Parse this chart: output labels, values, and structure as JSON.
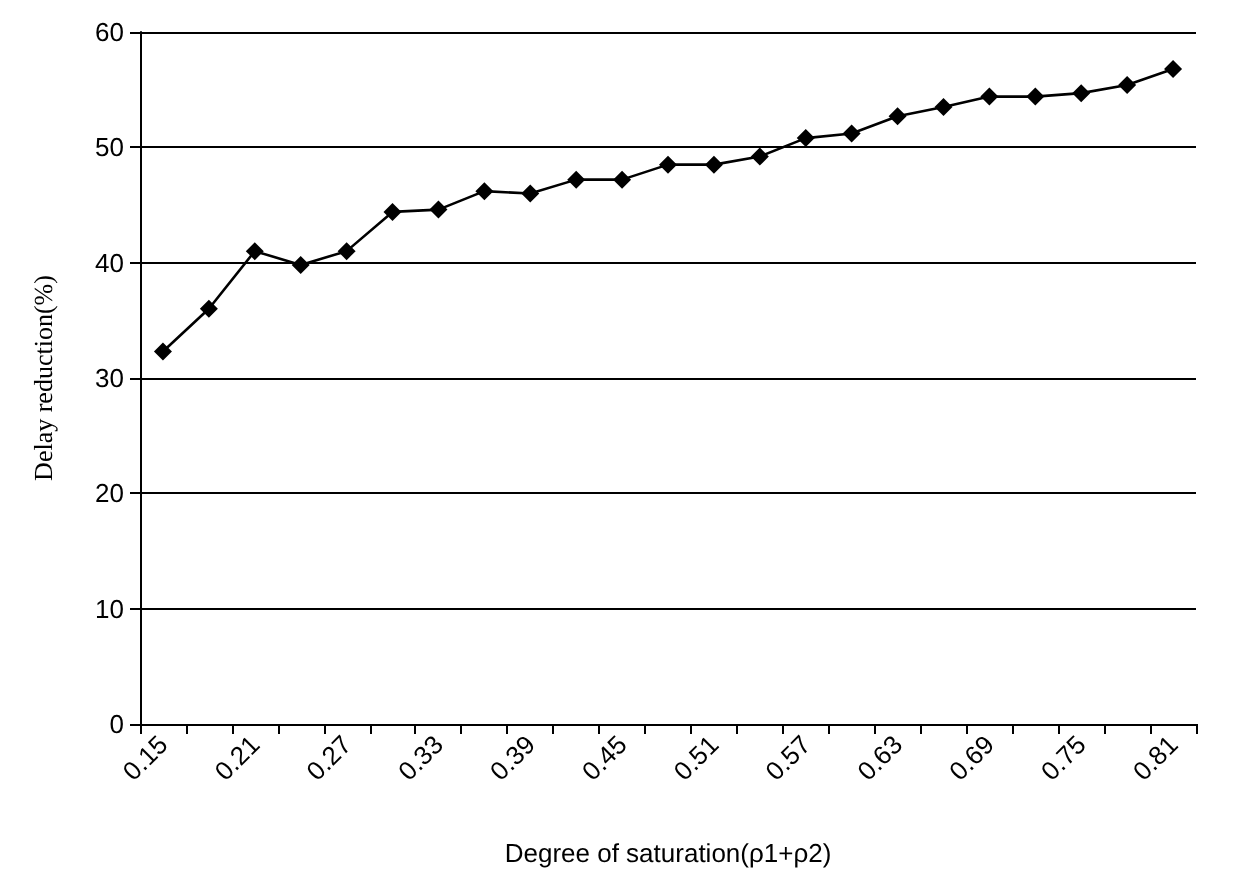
{
  "chart_data": {
    "type": "line",
    "xlabel": "Degree of saturation(ρ1+ρ2)",
    "ylabel": "Delay reduction(%)",
    "categories": [
      "0.15",
      null,
      "0.21",
      null,
      "0.27",
      null,
      "0.33",
      null,
      "0.39",
      null,
      "0.45",
      null,
      "0.51",
      null,
      "0.57",
      null,
      "0.63",
      null,
      "0.69",
      null,
      "0.75",
      null,
      "0.81"
    ],
    "series": [
      {
        "color": "#000000",
        "values": [
          32.3,
          36,
          41,
          39.8,
          41,
          44.4,
          44.6,
          46.2,
          46,
          47.2,
          47.2,
          48.5,
          48.5,
          49.2,
          50.8,
          51.2,
          52.7,
          53.5,
          54.4,
          54.4,
          54.7,
          55.4,
          56.8
        ]
      }
    ],
    "ylim": [
      0,
      60
    ],
    "yticks": [
      0,
      10,
      20,
      30,
      40,
      50,
      60
    ],
    "grid": "y",
    "marker": "diamond",
    "line_style": "solid"
  }
}
